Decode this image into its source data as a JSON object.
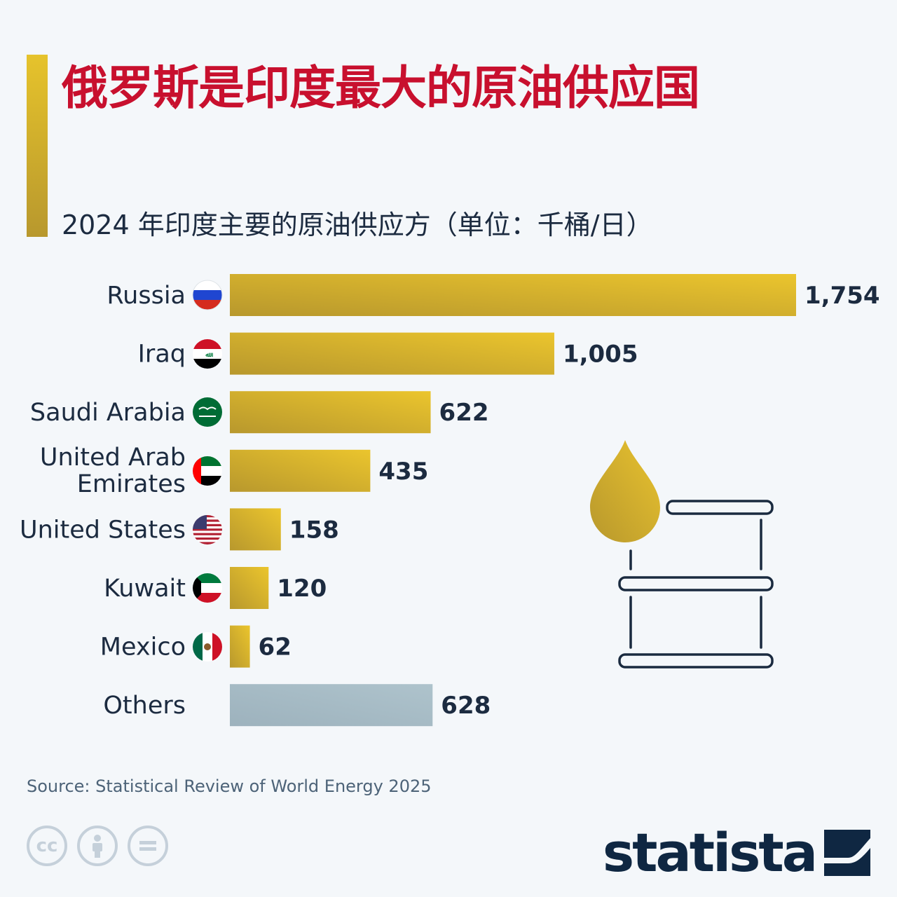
{
  "title": "俄罗斯是印度最大的原油供应国",
  "subtitle": "2024 年印度主要的原油供应方（单位：千桶/日）",
  "source": "Source: Statistical Review of World Energy 2025",
  "brand": "statista",
  "colors": {
    "title": "#c8102e",
    "bar_gold_start": "#b8982d",
    "bar_gold_end": "#ebc52d",
    "bar_others_start": "#9db2bd",
    "bar_others_end": "#aec3cc",
    "text_dark": "#1c2b40"
  },
  "icons": [
    "russia-flag-icon",
    "iraq-flag-icon",
    "saudi-arabia-flag-icon",
    "uae-flag-icon",
    "us-flag-icon",
    "kuwait-flag-icon",
    "mexico-flag-icon",
    "oil-drop-icon",
    "oil-barrel-icon",
    "cc-icon",
    "by-icon",
    "nd-icon"
  ],
  "chart_data": {
    "type": "bar",
    "orientation": "horizontal",
    "categories": [
      "Russia",
      "Iraq",
      "Saudi Arabia",
      "United Arab Emirates",
      "United States",
      "Kuwait",
      "Mexico",
      "Others"
    ],
    "values": [
      1754,
      1005,
      622,
      435,
      158,
      120,
      62,
      628
    ],
    "value_labels": [
      "1,754",
      "1,005",
      "622",
      "435",
      "158",
      "120",
      "62",
      "628"
    ],
    "title": "俄罗斯是印度最大的原油供应国",
    "subtitle": "2024 年印度主要的原油供应方（单位：千桶/日）",
    "xlim": [
      0,
      1754
    ],
    "grid": false,
    "legend": "none"
  }
}
